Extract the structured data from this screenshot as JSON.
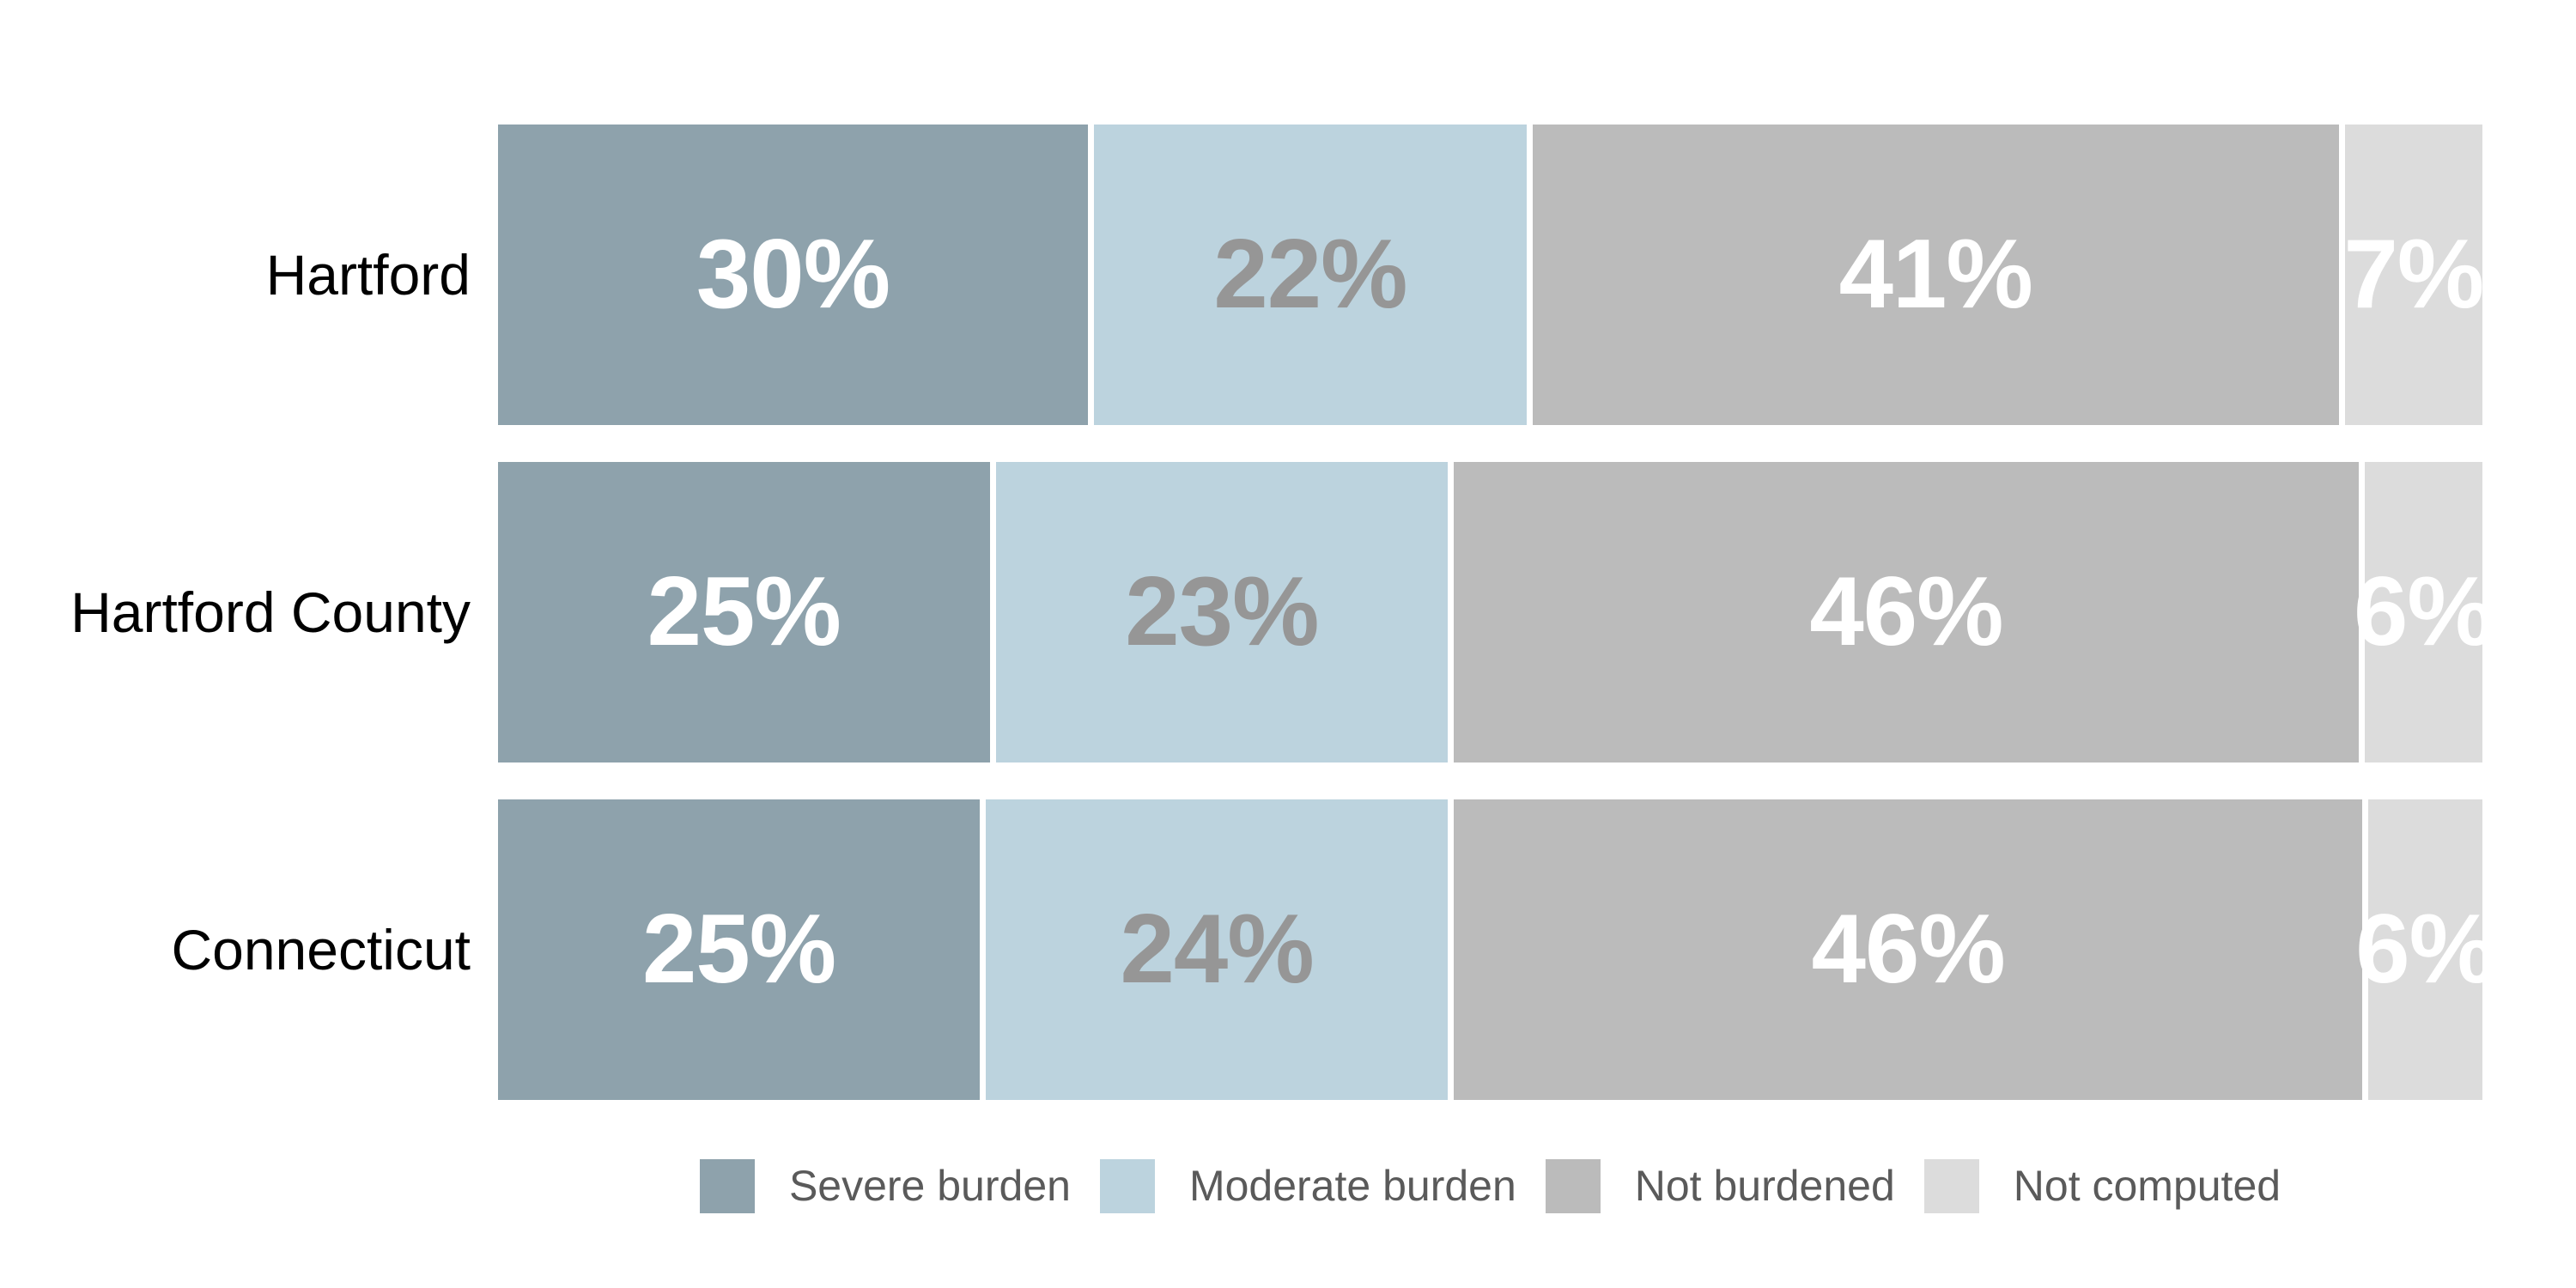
{
  "chart_data": {
    "type": "bar",
    "variant": "horizontal-stacked-100pct",
    "title": "",
    "xlabel": "",
    "ylabel": "",
    "axes_visible": false,
    "grid": false,
    "background_color": "#ffffff",
    "categories": [
      "Hartford",
      "Hartford County",
      "Connecticut"
    ],
    "series": [
      {
        "name": "Severe burden",
        "color": "#8EA2AC",
        "label_color": "#FFFFFF",
        "values": [
          30,
          25,
          25
        ]
      },
      {
        "name": "Moderate burden",
        "color": "#BCD3DE",
        "label_color": "#969696",
        "values": [
          22,
          23,
          24
        ]
      },
      {
        "name": "Not burdened",
        "color": "#BBBBBB",
        "label_color": "#FFFFFF",
        "values": [
          41,
          46,
          46
        ]
      },
      {
        "name": "Not computed",
        "color": "#DCDCDC",
        "label_color": "#FFFFFF",
        "values": [
          7,
          6,
          6
        ]
      }
    ],
    "value_labels": [
      [
        "30%",
        "22%",
        "41%",
        "7%"
      ],
      [
        "25%",
        "23%",
        "46%",
        "6%"
      ],
      [
        "25%",
        "24%",
        "46%",
        "6%"
      ]
    ],
    "segment_widths_pct": [
      [
        30,
        22,
        41,
        7
      ],
      [
        25,
        23,
        46,
        6
      ],
      [
        24.5,
        23.5,
        46.2,
        5.8
      ]
    ],
    "legend": {
      "position": "bottom-center",
      "entries": [
        "Severe burden",
        "Moderate burden",
        "Not burdened",
        "Not computed"
      ]
    },
    "colors": {
      "row_label_text": "#000000",
      "legend_text": "#5A5A5A",
      "segment_gap": "#FFFFFF"
    }
  }
}
